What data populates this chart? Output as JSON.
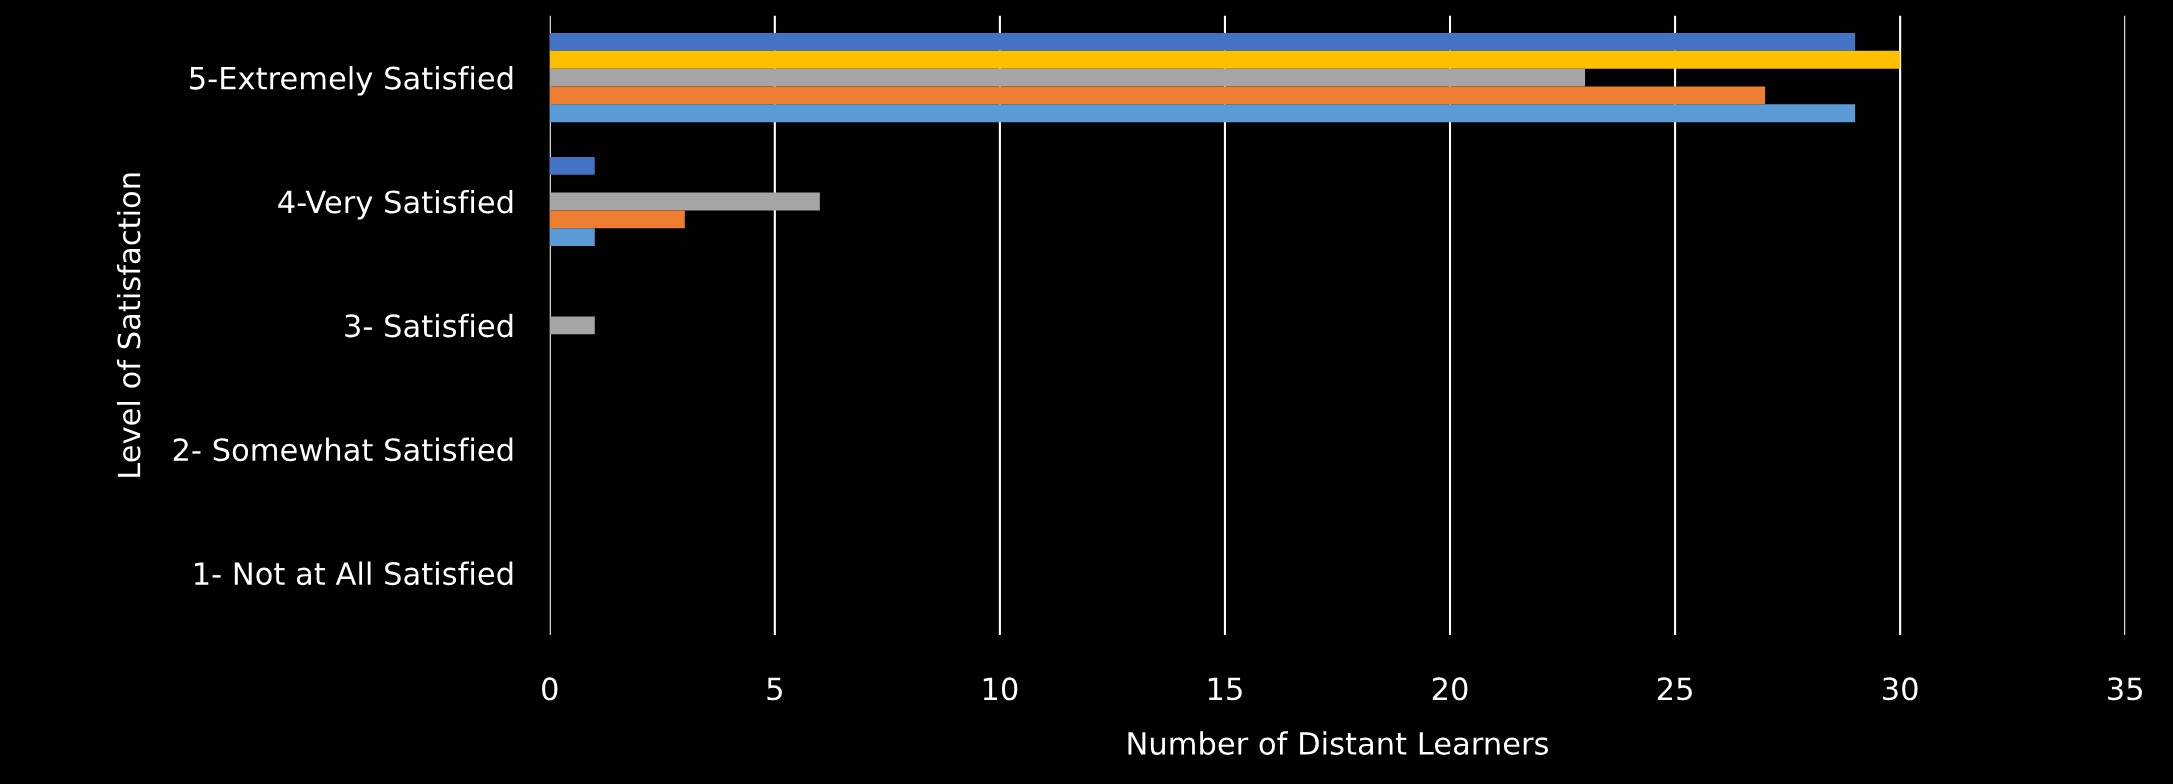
{
  "chart_data": {
    "type": "bar",
    "orientation": "horizontal",
    "xlabel": "Number of Distant Learners",
    "ylabel": "Level of Satisfaction",
    "categories": [
      "5-Extremely Satisfied",
      "4-Very Satisfied",
      "3- Satisfied",
      "2- Somewhat Satisfied",
      "1- Not at All Satisfied"
    ],
    "series": [
      {
        "color": "#4472c4",
        "values": [
          29,
          1,
          0,
          0,
          0
        ]
      },
      {
        "color": "#ffc000",
        "values": [
          30,
          0,
          0,
          0,
          0
        ]
      },
      {
        "color": "#a5a5a5",
        "values": [
          23,
          6,
          1,
          0,
          0
        ]
      },
      {
        "color": "#ed7d31",
        "values": [
          27,
          3,
          0,
          0,
          0
        ]
      },
      {
        "color": "#5b9bd5",
        "values": [
          29,
          1,
          0,
          0,
          0
        ]
      }
    ],
    "xlim": [
      0,
      35
    ],
    "xticks": [
      0,
      5,
      10,
      15,
      20,
      25,
      30,
      35
    ],
    "grid": "x"
  }
}
